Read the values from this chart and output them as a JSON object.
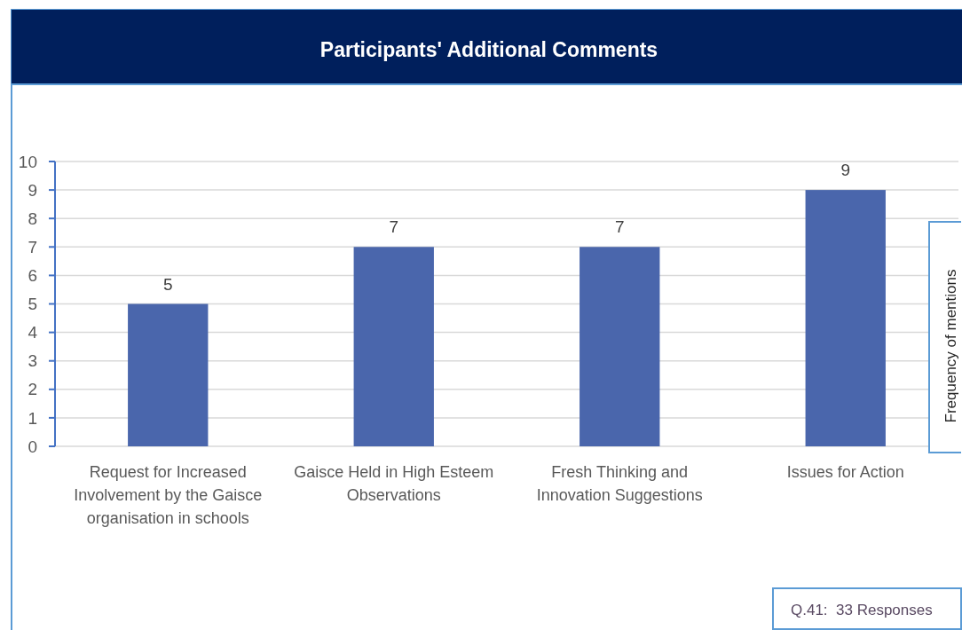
{
  "chart_data": {
    "type": "bar",
    "title": "Participants' Additional Comments",
    "categories": [
      "Request for Increased Involvement by the Gaisce organisation in schools",
      "Gaisce Held in High Esteem Observations",
      "Fresh Thinking and Innovation Suggestions",
      "Issues for Action"
    ],
    "values": [
      5,
      7,
      7,
      9
    ],
    "color": "#4a66ac",
    "ylim": [
      0,
      10
    ],
    "yticks": [
      0,
      1,
      2,
      3,
      4,
      5,
      6,
      7,
      8,
      9,
      10
    ],
    "grid": "y",
    "data_labels": true,
    "ylabel": "Frequency of mentions",
    "annotations": [
      "Q.41:  33 Responses"
    ]
  }
}
